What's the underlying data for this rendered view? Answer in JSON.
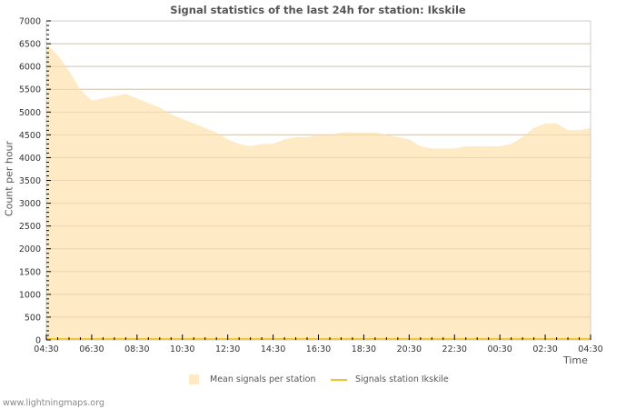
{
  "title": "Signal statistics of the last 24h for station: Ikskile",
  "footer": "www.lightningmaps.org",
  "legend": {
    "mean_label": "Mean signals per station",
    "station_label": "Signals station Ikskile"
  },
  "colors": {
    "mean_fill": "#feebc6",
    "station_line": "#f2c530",
    "grid": "#cccccc",
    "text": "#555555"
  },
  "chart_data": {
    "type": "area",
    "title": "Signal statistics of the last 24h for station: Ikskile",
    "xlabel": "Time",
    "ylabel": "Count per hour",
    "ylim": [
      0,
      7000
    ],
    "yticks": [
      0,
      500,
      1000,
      1500,
      2000,
      2500,
      3000,
      3500,
      4000,
      4500,
      5000,
      5500,
      6000,
      6500,
      7000
    ],
    "xticks": [
      "04:30",
      "06:30",
      "08:30",
      "10:30",
      "12:30",
      "14:30",
      "16:30",
      "18:30",
      "20:30",
      "22:30",
      "00:30",
      "02:30",
      "04:30"
    ],
    "grid": true,
    "legend_position": "bottom",
    "x": [
      "04:30",
      "05:00",
      "05:30",
      "06:00",
      "06:30",
      "07:00",
      "07:30",
      "08:00",
      "08:30",
      "09:00",
      "09:30",
      "10:00",
      "10:30",
      "11:00",
      "11:30",
      "12:00",
      "12:30",
      "13:00",
      "13:30",
      "14:00",
      "14:30",
      "15:00",
      "15:30",
      "16:00",
      "16:30",
      "17:00",
      "17:30",
      "18:00",
      "18:30",
      "19:00",
      "19:30",
      "20:00",
      "20:30",
      "21:00",
      "21:30",
      "22:00",
      "22:30",
      "23:00",
      "23:30",
      "00:00",
      "00:30",
      "01:00",
      "01:30",
      "02:00",
      "02:30",
      "03:00",
      "03:30",
      "04:00",
      "04:30"
    ],
    "series": [
      {
        "name": "Mean signals per station",
        "type": "area",
        "values": [
          6500,
          6250,
          5900,
          5500,
          5250,
          5300,
          5350,
          5400,
          5300,
          5200,
          5100,
          4950,
          4850,
          4750,
          4650,
          4550,
          4400,
          4300,
          4250,
          4300,
          4300,
          4400,
          4450,
          4450,
          4500,
          4500,
          4550,
          4550,
          4550,
          4550,
          4500,
          4450,
          4400,
          4250,
          4200,
          4200,
          4200,
          4250,
          4250,
          4250,
          4250,
          4300,
          4450,
          4650,
          4750,
          4750,
          4600,
          4600,
          4650
        ]
      },
      {
        "name": "Signals station Ikskile",
        "type": "line",
        "values": [
          0,
          0,
          0,
          0,
          0,
          0,
          0,
          0,
          0,
          0,
          0,
          0,
          0,
          0,
          0,
          0,
          0,
          0,
          0,
          0,
          0,
          0,
          0,
          0,
          0,
          0,
          0,
          0,
          0,
          0,
          0,
          0,
          0,
          0,
          0,
          0,
          0,
          0,
          0,
          0,
          0,
          0,
          0,
          0,
          0,
          0,
          0,
          0,
          0
        ]
      }
    ]
  }
}
